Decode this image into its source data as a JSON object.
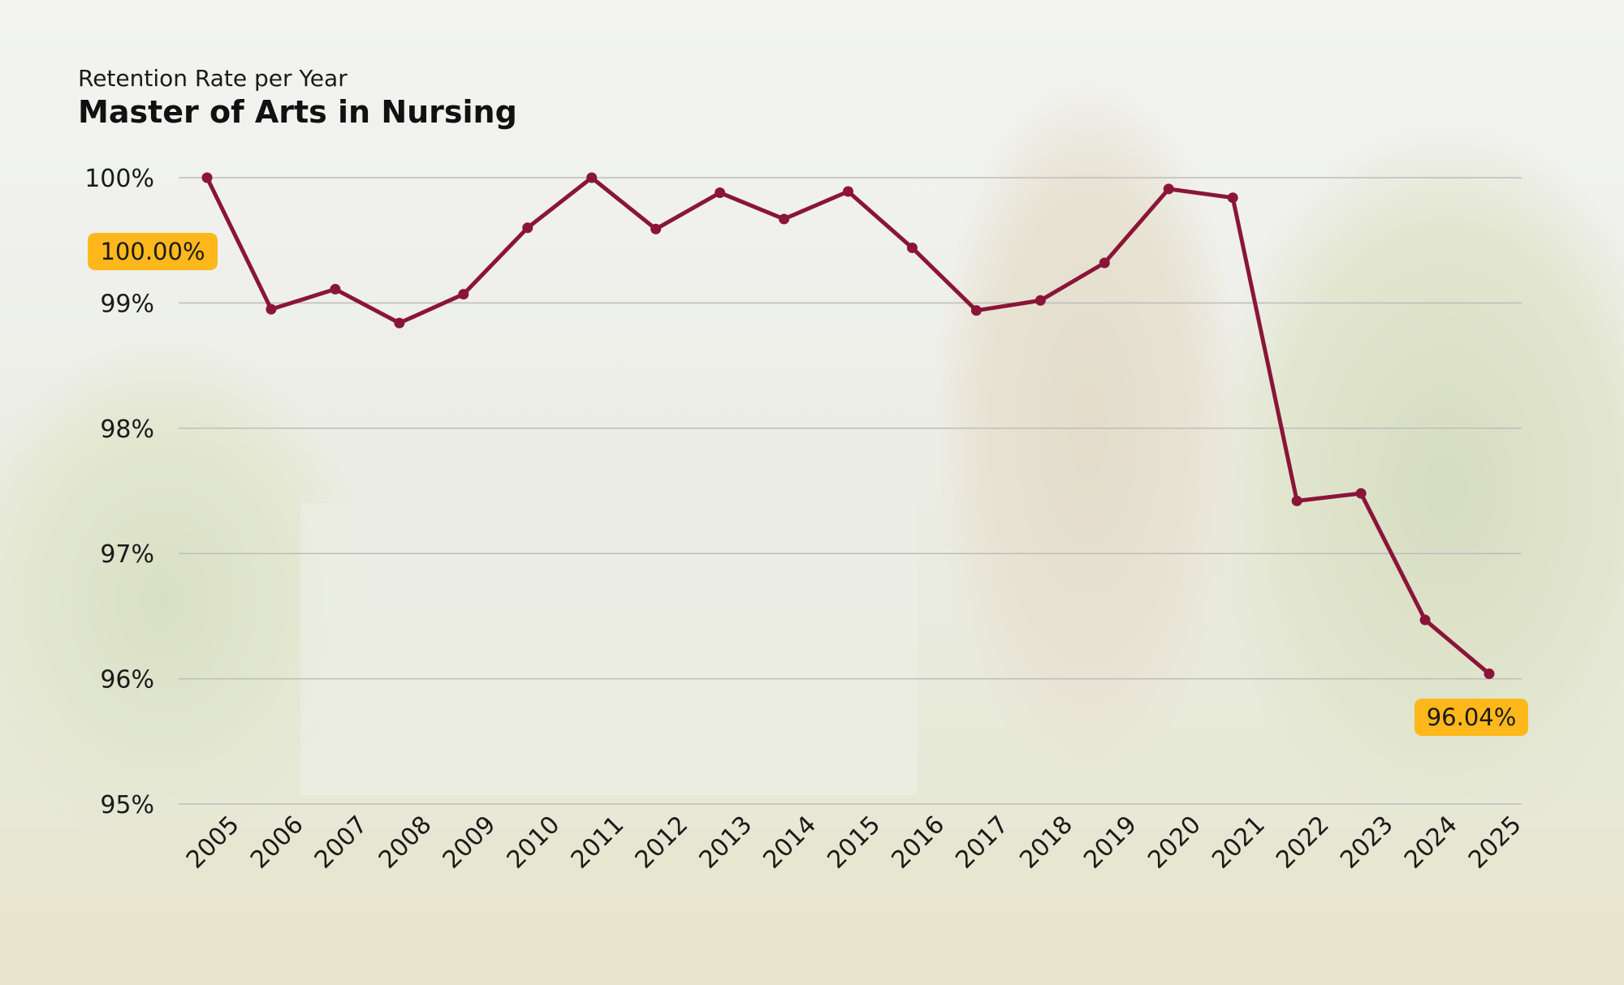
{
  "header": {
    "subtitle": "Retention Rate per Year",
    "title": "Master of Arts in Nursing"
  },
  "colors": {
    "line": "#8a1538",
    "callout": "#ffb81c",
    "grid": "#bdbdbd"
  },
  "chart_data": {
    "type": "line",
    "subtitle": "Retention Rate per Year",
    "title": "Master of Arts in Nursing",
    "x": [
      "2005",
      "2006",
      "2007",
      "2008",
      "2009",
      "2010",
      "2011",
      "2012",
      "2013",
      "2014",
      "2015",
      "2016",
      "2017",
      "2018",
      "2019",
      "2020",
      "2021",
      "2022",
      "2023",
      "2024",
      "2025"
    ],
    "series": [
      {
        "values": [
          100.0,
          98.95,
          99.11,
          98.84,
          99.07,
          99.6,
          100.0,
          99.59,
          99.88,
          99.67,
          99.89,
          99.44,
          98.94,
          99.02,
          99.32,
          99.91,
          99.84,
          97.42,
          97.48,
          96.47,
          96.04
        ]
      }
    ],
    "ylim": [
      95,
      100
    ],
    "yticks": [
      95,
      96,
      97,
      98,
      99,
      100
    ],
    "ytick_labels": [
      "95%",
      "96%",
      "97%",
      "98%",
      "99%",
      "100%"
    ],
    "grid": true,
    "annotations": [
      {
        "label": "100.00%",
        "x": "2005",
        "value": 100.0
      },
      {
        "label": "96.04%",
        "x": "2025",
        "value": 96.04
      }
    ]
  }
}
